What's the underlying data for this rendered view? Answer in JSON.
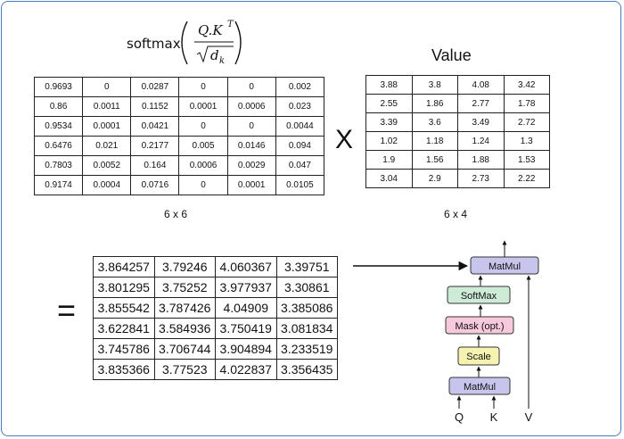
{
  "formula": {
    "func": "softmax",
    "numerator": "Q.K",
    "superscript": "T",
    "denominator": "d",
    "subscript": "k"
  },
  "value_label": "Value",
  "multiply_symbol": "X",
  "equals_symbol": "=",
  "softmax_matrix": {
    "dims": "6 x 6",
    "rows": [
      [
        "0.9693",
        "0",
        "0.0287",
        "0",
        "0",
        "0.002"
      ],
      [
        "0.86",
        "0.0011",
        "0.1152",
        "0.0001",
        "0.0006",
        "0.023"
      ],
      [
        "0.9534",
        "0.0001",
        "0.0421",
        "0",
        "0",
        "0.0044"
      ],
      [
        "0.6476",
        "0.021",
        "0.2177",
        "0.005",
        "0.0146",
        "0.094"
      ],
      [
        "0.7803",
        "0.0052",
        "0.164",
        "0.0006",
        "0.0029",
        "0.047"
      ],
      [
        "0.9174",
        "0.0004",
        "0.0716",
        "0",
        "0.0001",
        "0.0105"
      ]
    ]
  },
  "value_matrix": {
    "dims": "6 x 4",
    "rows": [
      [
        "3.88",
        "3.8",
        "4.08",
        "3.42"
      ],
      [
        "2.55",
        "1.86",
        "2.77",
        "1.78"
      ],
      [
        "3.39",
        "3.6",
        "3.49",
        "2.72"
      ],
      [
        "1.02",
        "1.18",
        "1.24",
        "1.3"
      ],
      [
        "1.9",
        "1.56",
        "1.88",
        "1.53"
      ],
      [
        "3.04",
        "2.9",
        "2.73",
        "2.22"
      ]
    ]
  },
  "result_matrix": {
    "rows": [
      [
        "3.864257",
        "3.79246",
        "4.060367",
        "3.39751"
      ],
      [
        "3.801295",
        "3.75252",
        "3.977937",
        "3.30861"
      ],
      [
        "3.855542",
        "3.787426",
        "4.04909",
        "3.385086"
      ],
      [
        "3.622841",
        "3.584936",
        "3.750419",
        "3.081834"
      ],
      [
        "3.745786",
        "3.706744",
        "3.904894",
        "3.233519"
      ],
      [
        "3.835366",
        "3.77523",
        "4.022837",
        "3.356435"
      ]
    ]
  },
  "attention_diagram": {
    "blocks": {
      "matmul_top": "MatMul",
      "softmax": "SoftMax",
      "mask": "Mask (opt.)",
      "scale": "Scale",
      "matmul_bottom": "MatMul"
    },
    "inputs": {
      "q": "Q",
      "k": "K",
      "v": "V"
    },
    "colors": {
      "matmul": "#c8c5ec",
      "softmax": "#cdebd6",
      "mask": "#f6c9dc",
      "scale": "#f6f2b0"
    }
  }
}
